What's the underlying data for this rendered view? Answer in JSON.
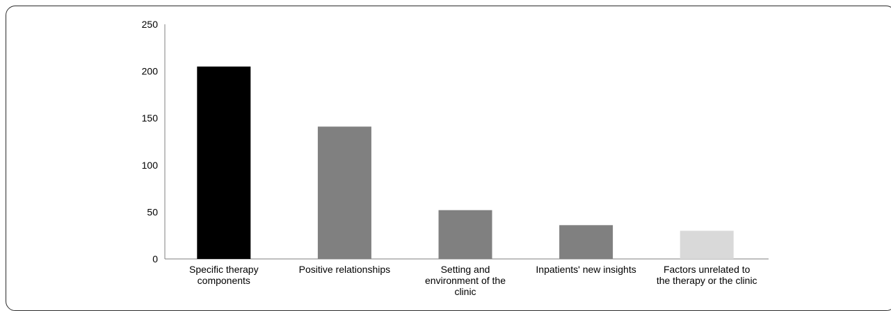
{
  "chart_data": {
    "type": "bar",
    "title": "",
    "xlabel": "",
    "ylabel": "",
    "ylim": [
      0,
      250
    ],
    "yticks": [
      0,
      50,
      100,
      150,
      200,
      250
    ],
    "grid": false,
    "categories": [
      [
        "Specific therapy",
        "components"
      ],
      [
        "Positive relationships"
      ],
      [
        "Setting and",
        "environment of the",
        "clinic"
      ],
      [
        "Inpatients' new insights"
      ],
      [
        "Factors unrelated to",
        "the therapy or the clinic"
      ]
    ],
    "values": [
      205,
      141,
      52,
      36,
      30
    ],
    "colors": [
      "#000000",
      "#808080",
      "#808080",
      "#808080",
      "#d9d9d9"
    ],
    "axis_color": "#7f7f7f"
  }
}
